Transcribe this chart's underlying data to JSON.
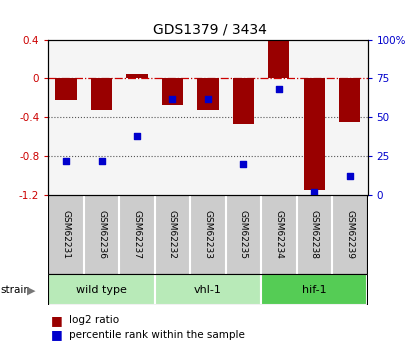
{
  "title": "GDS1379 / 3434",
  "samples": [
    "GSM62231",
    "GSM62236",
    "GSM62237",
    "GSM62232",
    "GSM62233",
    "GSM62235",
    "GSM62234",
    "GSM62238",
    "GSM62239"
  ],
  "log2_ratio": [
    -0.22,
    -0.32,
    0.05,
    -0.27,
    -0.32,
    -0.47,
    0.4,
    -1.15,
    -0.45
  ],
  "percentile": [
    22,
    22,
    38,
    62,
    62,
    20,
    68,
    2,
    12
  ],
  "groups": [
    {
      "label": "wild type",
      "start": 0,
      "end": 3,
      "color": "#b8eab8"
    },
    {
      "label": "vhl-1",
      "start": 3,
      "end": 6,
      "color": "#b8eab8"
    },
    {
      "label": "hif-1",
      "start": 6,
      "end": 9,
      "color": "#55cc55"
    }
  ],
  "ylim_left": [
    -1.2,
    0.4
  ],
  "ylim_right": [
    0,
    100
  ],
  "bar_color": "#990000",
  "dot_color": "#0000cc",
  "plot_bg": "#f5f5f5",
  "legend_bar_label": "log2 ratio",
  "legend_dot_label": "percentile rank within the sample",
  "strain_label": "strain",
  "left_yticks": [
    -1.2,
    -0.8,
    -0.4,
    0.0,
    0.4
  ],
  "left_yticklabels": [
    "-1.2",
    "-0.8",
    "-0.4",
    "0",
    "0.4"
  ],
  "right_yticks": [
    0,
    25,
    50,
    75,
    100
  ],
  "right_yticklabels": [
    "0",
    "25",
    "50",
    "75",
    "100%"
  ]
}
